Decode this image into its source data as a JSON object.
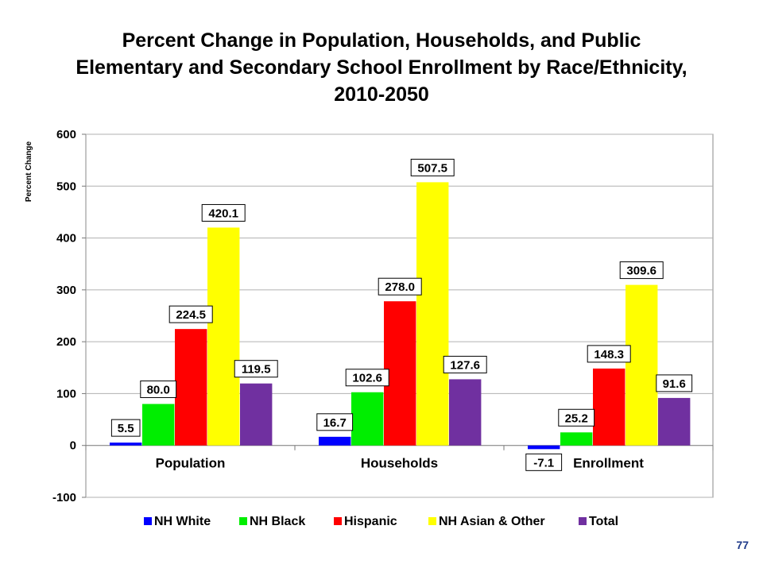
{
  "slide": {
    "title_lines": [
      "Percent Change in Population, Households, and Public",
      "Elementary and Secondary School Enrollment by Race/Ethnicity,",
      "2010-2050"
    ],
    "page_number": "77"
  },
  "chart_data": {
    "type": "bar",
    "title": "Percent Change in Population, Households, and Public Elementary and Secondary School Enrollment by Race/Ethnicity, 2010-2050",
    "ylabel": "Percent Change",
    "xlabel": "",
    "ylim": [
      -100,
      600
    ],
    "yticks": [
      -100,
      0,
      100,
      200,
      300,
      400,
      500,
      600
    ],
    "grid": true,
    "legend_position": "bottom",
    "categories": [
      "Population",
      "Households",
      "Enrollment"
    ],
    "series": [
      {
        "name": "NH White",
        "color": "#0000ff",
        "values": [
          5.5,
          16.7,
          -7.1
        ],
        "labels": [
          "5.5",
          "16.7",
          "-7.1"
        ]
      },
      {
        "name": "NH Black",
        "color": "#00ee00",
        "values": [
          80.0,
          102.6,
          25.2
        ],
        "labels": [
          "80.0",
          "102.6",
          "25.2"
        ]
      },
      {
        "name": "Hispanic",
        "color": "#ff0000",
        "values": [
          224.5,
          278.0,
          148.3
        ],
        "labels": [
          "224.5",
          "278.0",
          "148.3"
        ]
      },
      {
        "name": "NH Asian & Other",
        "color": "#ffff00",
        "values": [
          420.1,
          507.5,
          309.6
        ],
        "labels": [
          "420.1",
          "507.5",
          "309.6"
        ]
      },
      {
        "name": "Total",
        "color": "#7030a0",
        "values": [
          119.5,
          127.6,
          91.6
        ],
        "labels": [
          "119.5",
          "127.6",
          "91.6"
        ]
      }
    ]
  }
}
